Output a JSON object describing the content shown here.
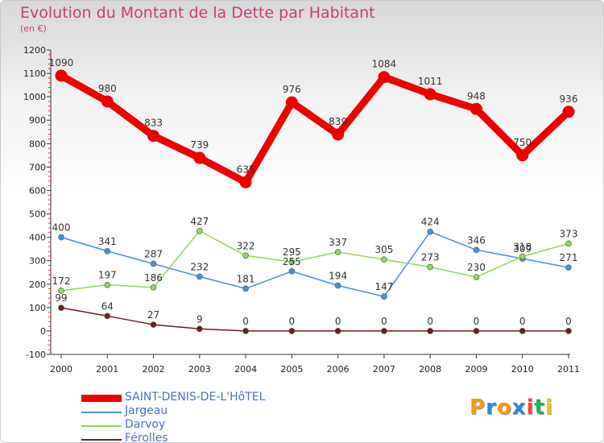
{
  "header": {
    "title": "Evolution du Montant de la Dette par Habitant",
    "subtitle": "(en €)"
  },
  "logo": {
    "text": "Proxiti",
    "colors": [
      "#f39c12",
      "#1f8fd8",
      "#f39c12",
      "#2e86de",
      "#e74c3c",
      "#27ae60",
      "#f1c40f"
    ]
  },
  "chart_data": {
    "type": "line",
    "title": "Evolution du Montant de la Dette par Habitant",
    "subtitle": "(en €)",
    "xlabel": "",
    "ylabel": "",
    "x": [
      "2000",
      "2001",
      "2002",
      "2003",
      "2004",
      "2005",
      "2006",
      "2007",
      "2008",
      "2009",
      "2010",
      "2011"
    ],
    "ylim": [
      -100,
      1200
    ],
    "yticks": [
      -100,
      0,
      100,
      200,
      300,
      400,
      500,
      600,
      700,
      800,
      900,
      1000,
      1100,
      1200
    ],
    "grid": false,
    "legend_position": "bottom-left",
    "series": [
      {
        "name": "SAINT-DENIS-DE-L'HôTEL",
        "color": "#ee0000",
        "width": "thick",
        "values": [
          1090,
          980,
          833,
          739,
          635,
          976,
          839,
          1084,
          1011,
          948,
          750,
          936
        ]
      },
      {
        "name": "Jargeau",
        "color": "#4a90d9",
        "width": "thin",
        "values": [
          400,
          341,
          287,
          232,
          181,
          255,
          194,
          147,
          424,
          346,
          309,
          271
        ]
      },
      {
        "name": "Darvoy",
        "color": "#8fd65a",
        "width": "thin",
        "values": [
          172,
          197,
          186,
          427,
          322,
          295,
          337,
          305,
          273,
          230,
          318,
          373
        ]
      },
      {
        "name": "Férolles",
        "color": "#6b1f1f",
        "width": "thin",
        "values": [
          99,
          64,
          27,
          9,
          0,
          0,
          0,
          0,
          0,
          0,
          0,
          0
        ]
      }
    ]
  }
}
